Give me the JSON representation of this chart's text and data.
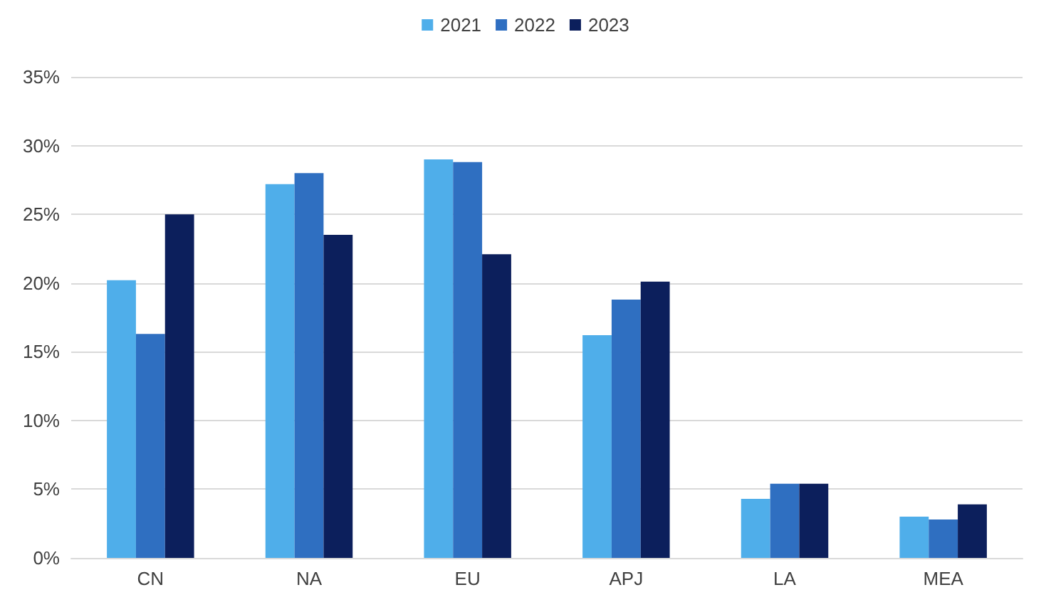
{
  "chart_data": {
    "type": "bar",
    "categories": [
      "CN",
      "NA",
      "EU",
      "APJ",
      "LA",
      "MEA"
    ],
    "series": [
      {
        "name": "2021",
        "color": "#4faeea",
        "values": [
          20.2,
          27.2,
          29.0,
          16.2,
          4.3,
          3.0
        ]
      },
      {
        "name": "2022",
        "color": "#2f6fc1",
        "values": [
          16.3,
          28.0,
          28.8,
          18.8,
          5.4,
          2.8
        ]
      },
      {
        "name": "2023",
        "color": "#0c1f5c",
        "values": [
          25.0,
          23.5,
          22.1,
          20.1,
          5.4,
          3.9
        ]
      }
    ],
    "ylim": [
      0,
      35
    ],
    "yticks": [
      {
        "value": 0,
        "label": "0%"
      },
      {
        "value": 5,
        "label": "5%"
      },
      {
        "value": 10,
        "label": "10%"
      },
      {
        "value": 15,
        "label": "15%"
      },
      {
        "value": 20,
        "label": "20%"
      },
      {
        "value": 25,
        "label": "25%"
      },
      {
        "value": 30,
        "label": "30%"
      },
      {
        "value": 35,
        "label": "35%"
      }
    ],
    "grid": "y",
    "legend": "top"
  }
}
